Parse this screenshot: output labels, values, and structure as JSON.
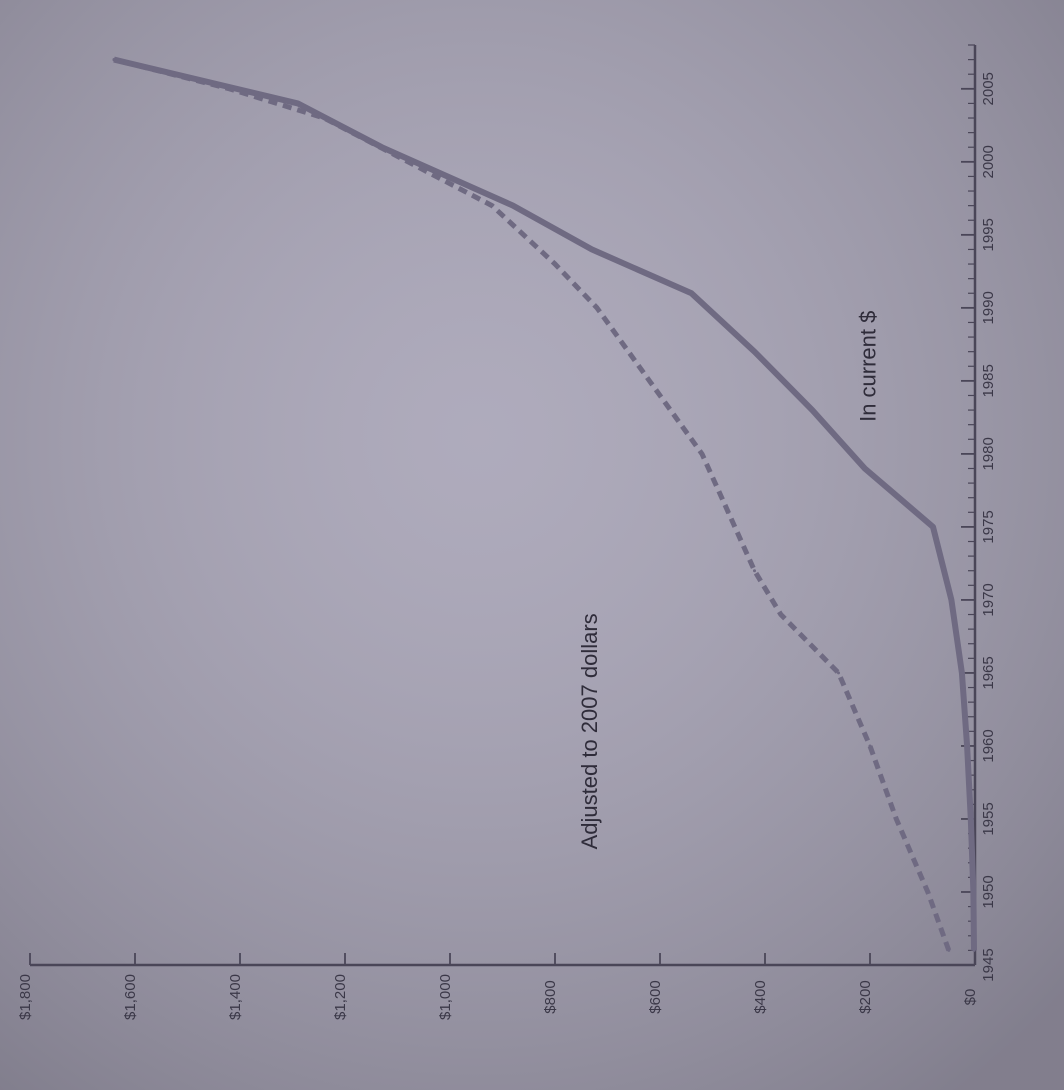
{
  "chart_data": {
    "type": "line",
    "orientation": "rotated-90-ccw",
    "xlim": [
      1945,
      2008
    ],
    "ylim": [
      0,
      1800
    ],
    "x_ticks": [
      1945,
      1950,
      1955,
      1960,
      1965,
      1970,
      1975,
      1980,
      1985,
      1990,
      1995,
      2000,
      2005
    ],
    "y_ticks": [
      "$0",
      "$200",
      "$400",
      "$600",
      "$800",
      "$1,000",
      "$1,200",
      "$1,400",
      "$1,600",
      "$1,800"
    ],
    "y_tick_values": [
      0,
      200,
      400,
      600,
      800,
      1000,
      1200,
      1400,
      1600,
      1800
    ],
    "grid": false,
    "colors": {
      "background": "#a6a2b5",
      "axis": "#4a4658",
      "line": "#6f6a82"
    },
    "series": [
      {
        "name": "In current $",
        "style": "solid",
        "x": [
          1946,
          1950,
          1955,
          1960,
          1965,
          1970,
          1975,
          1979,
          1983,
          1987,
          1991,
          1994,
          1997,
          2001,
          2004,
          2007
        ],
        "values": [
          2,
          3,
          8,
          15,
          25,
          45,
          80,
          210,
          310,
          420,
          540,
          730,
          880,
          1130,
          1290,
          1640
        ]
      },
      {
        "name": "Adjusted to 2007 dollars",
        "style": "dashed",
        "x": [
          1946,
          1950,
          1955,
          1960,
          1965,
          1969,
          1972,
          1976,
          1980,
          1985,
          1990,
          1993,
          1997,
          2000,
          2003,
          2005,
          2007
        ],
        "values": [
          50,
          90,
          150,
          200,
          260,
          370,
          420,
          470,
          520,
          620,
          720,
          800,
          920,
          1080,
          1240,
          1420,
          1640
        ]
      }
    ],
    "annotations": [
      {
        "text": "Adjusted to 2007 dollars",
        "x": 1961,
        "y": 720
      },
      {
        "text": "In current $",
        "x": 1986,
        "y": 190
      }
    ]
  }
}
